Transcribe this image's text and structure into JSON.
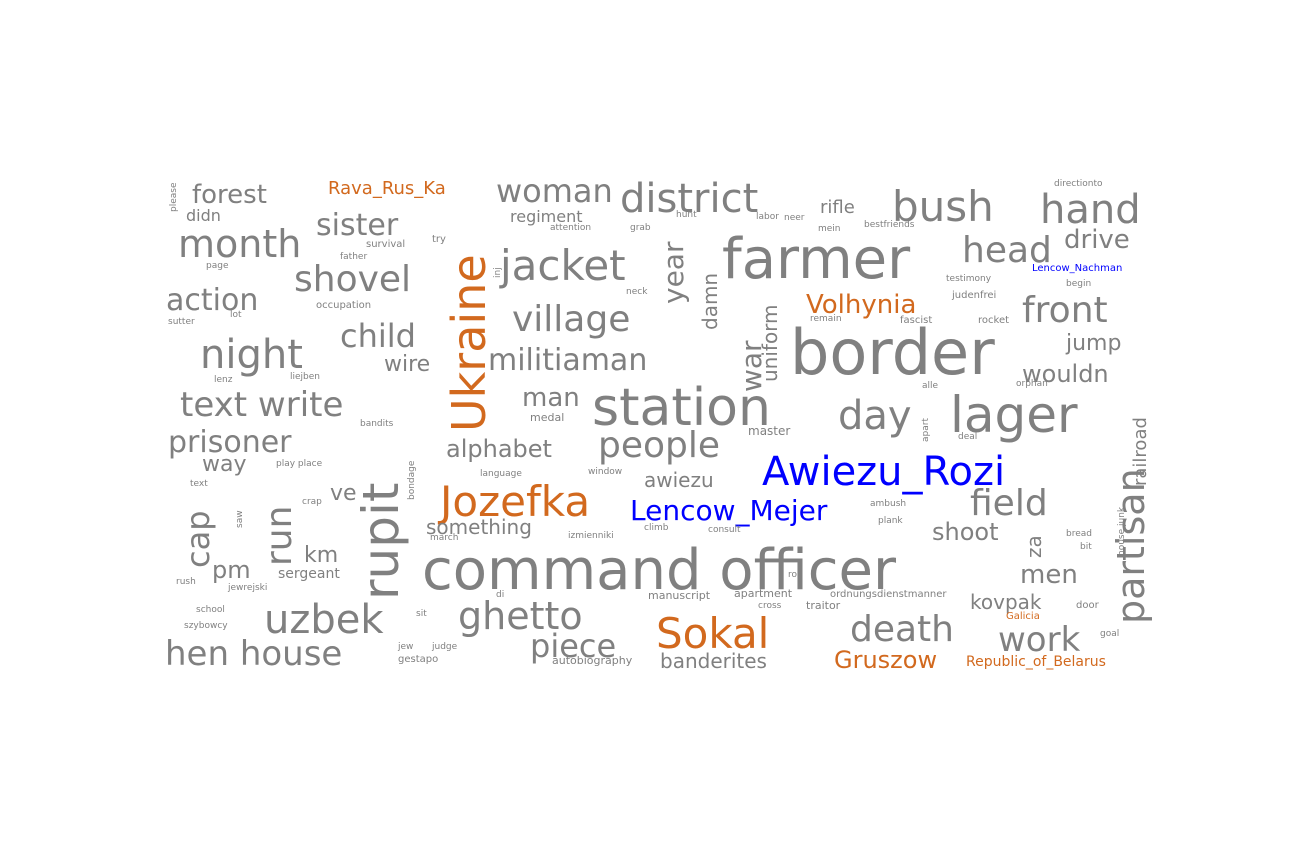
{
  "colors": {
    "gray": "#808080",
    "orange": "#d2691e",
    "blue": "#0000ff"
  },
  "words": [
    {
      "text": "command officer",
      "c": "gray"
    },
    {
      "text": "border",
      "c": "gray"
    },
    {
      "text": "farmer",
      "c": "gray"
    },
    {
      "text": "station",
      "c": "gray"
    },
    {
      "text": "lager",
      "c": "gray"
    },
    {
      "text": "Awiezu_Rozi",
      "c": "blue"
    },
    {
      "text": "Ukraine",
      "c": "orange"
    },
    {
      "text": "rupit",
      "c": "gray"
    },
    {
      "text": "Jozefka",
      "c": "orange"
    },
    {
      "text": "Sokal",
      "c": "orange"
    },
    {
      "text": "district",
      "c": "gray"
    },
    {
      "text": "jacket",
      "c": "gray"
    },
    {
      "text": "bush",
      "c": "gray"
    },
    {
      "text": "hand",
      "c": "gray"
    },
    {
      "text": "partisan",
      "c": "gray"
    },
    {
      "text": "month",
      "c": "gray"
    },
    {
      "text": "night",
      "c": "gray"
    },
    {
      "text": "woman",
      "c": "gray"
    },
    {
      "text": "village",
      "c": "gray"
    },
    {
      "text": "day",
      "c": "gray"
    },
    {
      "text": "text write",
      "c": "gray"
    },
    {
      "text": "hen house",
      "c": "gray"
    },
    {
      "text": "uzbek",
      "c": "gray"
    },
    {
      "text": "ghetto",
      "c": "gray"
    },
    {
      "text": "people",
      "c": "gray"
    },
    {
      "text": "death",
      "c": "gray"
    },
    {
      "text": "work",
      "c": "gray"
    },
    {
      "text": "field",
      "c": "gray"
    },
    {
      "text": "front",
      "c": "gray"
    },
    {
      "text": "head",
      "c": "gray"
    },
    {
      "text": "shovel",
      "c": "gray"
    },
    {
      "text": "sister",
      "c": "gray"
    },
    {
      "text": "militiaman",
      "c": "gray"
    },
    {
      "text": "child",
      "c": "gray"
    },
    {
      "text": "action",
      "c": "gray"
    },
    {
      "text": "prisoner",
      "c": "gray"
    },
    {
      "text": "piece",
      "c": "gray"
    },
    {
      "text": "Lencow_Mejer",
      "c": "blue"
    },
    {
      "text": "run",
      "c": "gray"
    },
    {
      "text": "cap",
      "c": "gray"
    },
    {
      "text": "drive",
      "c": "gray"
    },
    {
      "text": "forest",
      "c": "gray"
    },
    {
      "text": "war",
      "c": "gray"
    },
    {
      "text": "year",
      "c": "gray"
    },
    {
      "text": "alphabet",
      "c": "gray"
    },
    {
      "text": "man",
      "c": "gray"
    },
    {
      "text": "Volhynia",
      "c": "orange"
    },
    {
      "text": "Gruszow",
      "c": "orange"
    },
    {
      "text": "men",
      "c": "gray"
    },
    {
      "text": "shoot",
      "c": "gray"
    },
    {
      "text": "wouldn",
      "c": "gray"
    },
    {
      "text": "jump",
      "c": "gray"
    },
    {
      "text": "way",
      "c": "gray"
    },
    {
      "text": "pm",
      "c": "gray"
    },
    {
      "text": "km",
      "c": "gray"
    },
    {
      "text": "ve",
      "c": "gray"
    },
    {
      "text": "wire",
      "c": "gray"
    },
    {
      "text": "uniform",
      "c": "gray"
    },
    {
      "text": "damn",
      "c": "gray"
    },
    {
      "text": "something",
      "c": "gray"
    },
    {
      "text": "awiezu",
      "c": "gray"
    },
    {
      "text": "banderites",
      "c": "gray"
    },
    {
      "text": "kovpak",
      "c": "gray"
    },
    {
      "text": "za",
      "c": "gray"
    },
    {
      "text": "railroad",
      "c": "gray"
    },
    {
      "text": "Rava_Rus_Ka",
      "c": "orange"
    },
    {
      "text": "Republic_of_Belarus",
      "c": "orange"
    },
    {
      "text": "rifle",
      "c": "gray"
    },
    {
      "text": "regiment",
      "c": "gray"
    },
    {
      "text": "didn",
      "c": "gray"
    },
    {
      "text": "sergeant",
      "c": "gray"
    },
    {
      "text": "Lencow_Nachman",
      "c": "blue"
    },
    {
      "text": "master",
      "c": "gray"
    },
    {
      "text": "medal",
      "c": "gray"
    },
    {
      "text": "manuscript",
      "c": "gray"
    },
    {
      "text": "apartment",
      "c": "gray"
    },
    {
      "text": "traitor",
      "c": "gray"
    },
    {
      "text": "autobiography",
      "c": "gray"
    },
    {
      "text": "gestapo",
      "c": "gray"
    },
    {
      "text": "language",
      "c": "gray"
    },
    {
      "text": "window",
      "c": "gray"
    },
    {
      "text": "consult",
      "c": "gray"
    },
    {
      "text": "climb",
      "c": "gray"
    },
    {
      "text": "izmienniki",
      "c": "gray"
    },
    {
      "text": "march",
      "c": "gray"
    },
    {
      "text": "occupation",
      "c": "gray"
    },
    {
      "text": "survival",
      "c": "gray"
    },
    {
      "text": "father",
      "c": "gray"
    },
    {
      "text": "try",
      "c": "gray"
    },
    {
      "text": "fascist",
      "c": "gray"
    },
    {
      "text": "rocket",
      "c": "gray"
    },
    {
      "text": "judenfrei",
      "c": "gray"
    },
    {
      "text": "testimony",
      "c": "gray"
    },
    {
      "text": "bestfriends",
      "c": "gray"
    },
    {
      "text": "directionto",
      "c": "gray"
    },
    {
      "text": "begin",
      "c": "gray"
    },
    {
      "text": "orphan",
      "c": "gray"
    },
    {
      "text": "remain",
      "c": "gray"
    },
    {
      "text": "bandits",
      "c": "gray"
    },
    {
      "text": "labor",
      "c": "gray"
    },
    {
      "text": "hunt",
      "c": "gray"
    },
    {
      "text": "mein",
      "c": "gray"
    },
    {
      "text": "neer",
      "c": "gray"
    },
    {
      "text": "grab",
      "c": "gray"
    },
    {
      "text": "attention",
      "c": "gray"
    },
    {
      "text": "neck",
      "c": "gray"
    },
    {
      "text": "sutter",
      "c": "gray"
    },
    {
      "text": "lenz",
      "c": "gray"
    },
    {
      "text": "liejben",
      "c": "gray"
    },
    {
      "text": "text",
      "c": "gray"
    },
    {
      "text": "rush",
      "c": "gray"
    },
    {
      "text": "jewrejski",
      "c": "gray"
    },
    {
      "text": "school",
      "c": "gray"
    },
    {
      "text": "szybowcy",
      "c": "gray"
    },
    {
      "text": "play place",
      "c": "gray"
    },
    {
      "text": "door",
      "c": "gray"
    },
    {
      "text": "goal",
      "c": "gray"
    },
    {
      "text": "bread",
      "c": "gray"
    },
    {
      "text": "bit",
      "c": "gray"
    },
    {
      "text": "plank",
      "c": "gray"
    },
    {
      "text": "ambush",
      "c": "gray"
    },
    {
      "text": "Galicia",
      "c": "orange"
    },
    {
      "text": "ordnungsdienstmanner",
      "c": "gray"
    },
    {
      "text": "cross",
      "c": "gray"
    },
    {
      "text": "rod",
      "c": "gray"
    },
    {
      "text": "sit",
      "c": "gray"
    },
    {
      "text": "jew",
      "c": "gray"
    },
    {
      "text": "judge",
      "c": "gray"
    },
    {
      "text": "deal",
      "c": "gray"
    },
    {
      "text": "alle",
      "c": "gray"
    },
    {
      "text": "apart",
      "c": "gray"
    },
    {
      "text": "please",
      "c": "gray"
    },
    {
      "text": "inj",
      "c": "gray"
    },
    {
      "text": "house junk",
      "c": "gray"
    },
    {
      "text": "page",
      "c": "gray"
    },
    {
      "text": "bondage",
      "c": "gray"
    },
    {
      "text": "saw",
      "c": "gray"
    },
    {
      "text": "lot",
      "c": "gray"
    },
    {
      "text": "di",
      "c": "gray"
    },
    {
      "text": "crap",
      "c": "gray"
    }
  ]
}
